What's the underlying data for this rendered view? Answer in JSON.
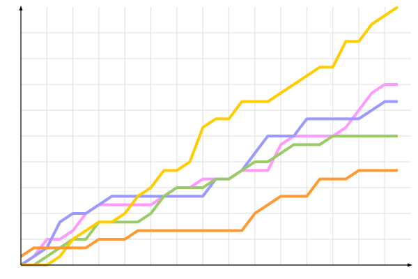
{
  "chart_data": {
    "type": "line",
    "title": "",
    "xlabel": "",
    "ylabel": "",
    "x": [
      0,
      1,
      2,
      3,
      4,
      5,
      6,
      7,
      8,
      9,
      10,
      11,
      12,
      13,
      14,
      15,
      16,
      17,
      18,
      19,
      20,
      21,
      22,
      23,
      24,
      25,
      26,
      27,
      28,
      29
    ],
    "xlim": [
      0,
      29
    ],
    "ylim": [
      0,
      30
    ],
    "x_grid_step": 2,
    "y_grid_step": 3,
    "grid": true,
    "legend": "none",
    "series": [
      {
        "color": "#ff99ff",
        "values": [
          0,
          1,
          3,
          3,
          4,
          6,
          7,
          7,
          7,
          7,
          7,
          8,
          9,
          9,
          10,
          10,
          10,
          11,
          11,
          11,
          14,
          15,
          15,
          15,
          15,
          16,
          18,
          20,
          21,
          21
        ]
      },
      {
        "color": "#9999ff",
        "values": [
          0,
          1,
          2,
          5,
          6,
          6,
          7,
          8,
          8,
          8,
          8,
          8,
          8,
          8,
          8,
          10,
          10,
          11,
          13,
          15,
          15,
          15,
          17,
          17,
          17,
          17,
          17,
          18,
          19,
          19
        ]
      },
      {
        "color": "#99cc66",
        "values": [
          0,
          0,
          1,
          2,
          3,
          3,
          5,
          5,
          5,
          5,
          6,
          8,
          9,
          9,
          9,
          10,
          10,
          11,
          12,
          12,
          13,
          14,
          14,
          14,
          15,
          15,
          15,
          15,
          15,
          15
        ]
      },
      {
        "color": "#ffcc00",
        "values": [
          0,
          0,
          0,
          1,
          3,
          4,
          5,
          5,
          6,
          8,
          9,
          11,
          11,
          12,
          16,
          17,
          17,
          19,
          19,
          19,
          20,
          21,
          22,
          23,
          23,
          26,
          26,
          28,
          29,
          30
        ]
      },
      {
        "color": "#ff9933",
        "values": [
          1,
          2,
          2,
          2,
          2,
          2,
          3,
          3,
          3,
          4,
          4,
          4,
          4,
          4,
          4,
          4,
          4,
          4,
          6,
          7,
          8,
          8,
          8,
          10,
          10,
          10,
          11,
          11,
          11,
          11
        ]
      }
    ]
  }
}
